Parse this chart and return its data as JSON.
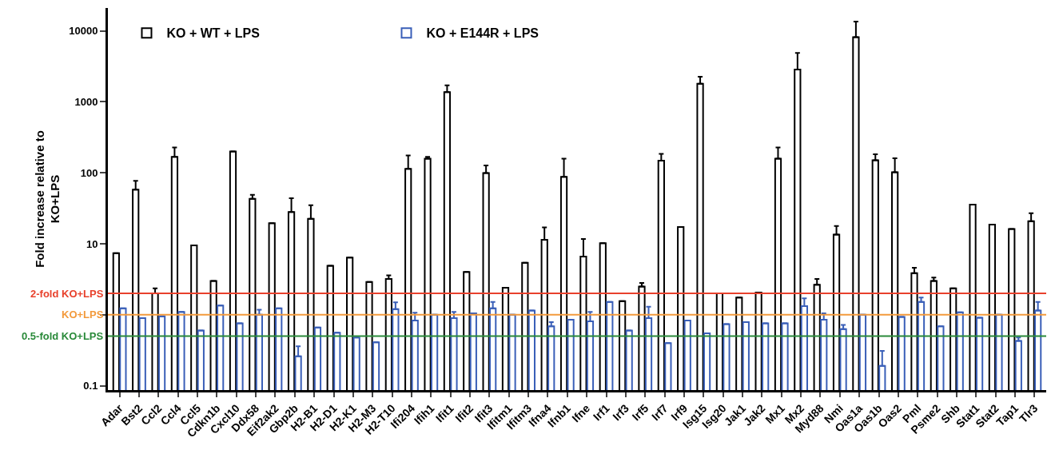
{
  "chart_data": {
    "type": "bar",
    "ylabel": "Fold increase relative to\nKO+LPS",
    "categories": [
      "Adar",
      "Bst2",
      "Ccl2",
      "Ccl4",
      "Ccl5",
      "Cdkn1b",
      "Cxcl10",
      "Ddx58",
      "Eif2ak2",
      "Gbp2b",
      "H2-B1",
      "H2-D1",
      "H2-K1",
      "H2-M3",
      "H2-T10",
      "Ifi204",
      "Ifih1",
      "Ifit1",
      "Ifit2",
      "Ifit3",
      "Ifitm1",
      "Ifitm3",
      "Ifna4",
      "Ifnb1",
      "Ifne",
      "Irf1",
      "Irf3",
      "Irf5",
      "Irf7",
      "Irf9",
      "Isg15",
      "Isg20",
      "Jak1",
      "Jak2",
      "Mx1",
      "Mx2",
      "Myd88",
      "Nmi",
      "Oas1a",
      "Oas1b",
      "Oas2",
      "Pml",
      "Psme2",
      "Shb",
      "Stat1",
      "Stat2",
      "Tap1",
      "Tlr3"
    ],
    "series": [
      {
        "name": "KO + WT + LPS",
        "color": "#000000",
        "values": [
          7.4,
          58,
          2.0,
          168,
          9.5,
          3.0,
          200,
          43,
          19.5,
          28,
          22.5,
          4.9,
          6.4,
          2.9,
          3.2,
          114,
          158,
          1370,
          4.0,
          99,
          2.4,
          5.4,
          11.4,
          88,
          6.6,
          10.2,
          1.56,
          2.5,
          148,
          17.3,
          1800,
          2.0,
          1.75,
          2.06,
          158,
          2860,
          2.65,
          13.5,
          8150,
          150,
          102,
          3.85,
          3.0,
          2.35,
          35.7,
          18.6,
          16.2,
          20.8
        ],
        "errors": [
          null,
          [
            58,
            77
          ],
          [
            2.0,
            2.35
          ],
          [
            168,
            228
          ],
          null,
          null,
          null,
          [
            43,
            49
          ],
          null,
          [
            28,
            44
          ],
          [
            22.5,
            35
          ],
          null,
          null,
          null,
          [
            3.2,
            3.6
          ],
          [
            114,
            176
          ],
          [
            158,
            168
          ],
          [
            1370,
            1710
          ],
          null,
          [
            99,
            127
          ],
          null,
          null,
          [
            11.4,
            17
          ],
          [
            88,
            158
          ],
          [
            6.6,
            11.7
          ],
          null,
          null,
          [
            2.5,
            2.8
          ],
          [
            148,
            185
          ],
          null,
          [
            1800,
            2260
          ],
          null,
          null,
          null,
          [
            158,
            228
          ],
          [
            2860,
            4900
          ],
          [
            2.65,
            3.2
          ],
          [
            13.5,
            17.8
          ],
          [
            8150,
            13500
          ],
          [
            150,
            182
          ],
          [
            102,
            160
          ],
          [
            3.85,
            4.6
          ],
          [
            3.0,
            3.35
          ],
          null,
          null,
          null,
          null,
          [
            20.8,
            27
          ]
        ]
      },
      {
        "name": "KO + E144R + LPS",
        "color": "#3a5fb8",
        "values": [
          1.23,
          0.9,
          0.95,
          1.1,
          0.6,
          1.35,
          0.76,
          1.0,
          1.23,
          0.26,
          0.66,
          0.56,
          0.48,
          0.41,
          1.2,
          0.83,
          1.0,
          0.9,
          1.05,
          1.23,
          1.0,
          1.15,
          0.69,
          0.85,
          0.81,
          1.52,
          0.6,
          0.9,
          0.4,
          0.83,
          0.55,
          0.74,
          0.79,
          0.76,
          0.76,
          1.32,
          0.85,
          0.63,
          1.0,
          0.19,
          0.93,
          1.52,
          0.69,
          1.08,
          0.91,
          1.0,
          0.43,
          1.15
        ],
        "errors": [
          null,
          null,
          null,
          null,
          null,
          null,
          null,
          [
            1.0,
            1.18
          ],
          null,
          [
            0.26,
            0.36
          ],
          null,
          null,
          null,
          null,
          [
            1.2,
            1.5
          ],
          [
            0.83,
            1.07
          ],
          null,
          [
            0.9,
            1.1
          ],
          null,
          [
            1.23,
            1.52
          ],
          null,
          null,
          [
            0.69,
            0.79
          ],
          null,
          [
            0.81,
            1.1
          ],
          null,
          null,
          [
            0.9,
            1.3
          ],
          null,
          null,
          null,
          null,
          null,
          null,
          null,
          [
            1.32,
            1.7
          ],
          [
            0.85,
            1.05
          ],
          [
            0.63,
            0.72
          ],
          null,
          [
            0.19,
            0.31
          ],
          null,
          [
            1.52,
            1.75
          ],
          null,
          null,
          null,
          null,
          [
            0.43,
            0.48
          ],
          [
            1.15,
            1.52
          ]
        ]
      }
    ],
    "log": true,
    "ylim": [
      0.087,
      21000
    ],
    "yticks": [
      0.1,
      {
        "value": 1,
        "label": null
      },
      10,
      100,
      1000,
      10000
    ],
    "ref_lines": [
      {
        "axis": "y",
        "value": 2,
        "label": "2-fold KO+LPS",
        "color": "#e8412c"
      },
      {
        "axis": "y",
        "value": 1,
        "label": "KO+LPS",
        "color": "#f39a3c"
      },
      {
        "axis": "y",
        "value": 0.5,
        "label": "0.5-fold KO+LPS",
        "color": "#2a8a3a"
      }
    ],
    "grid": false,
    "legend": "top left"
  }
}
